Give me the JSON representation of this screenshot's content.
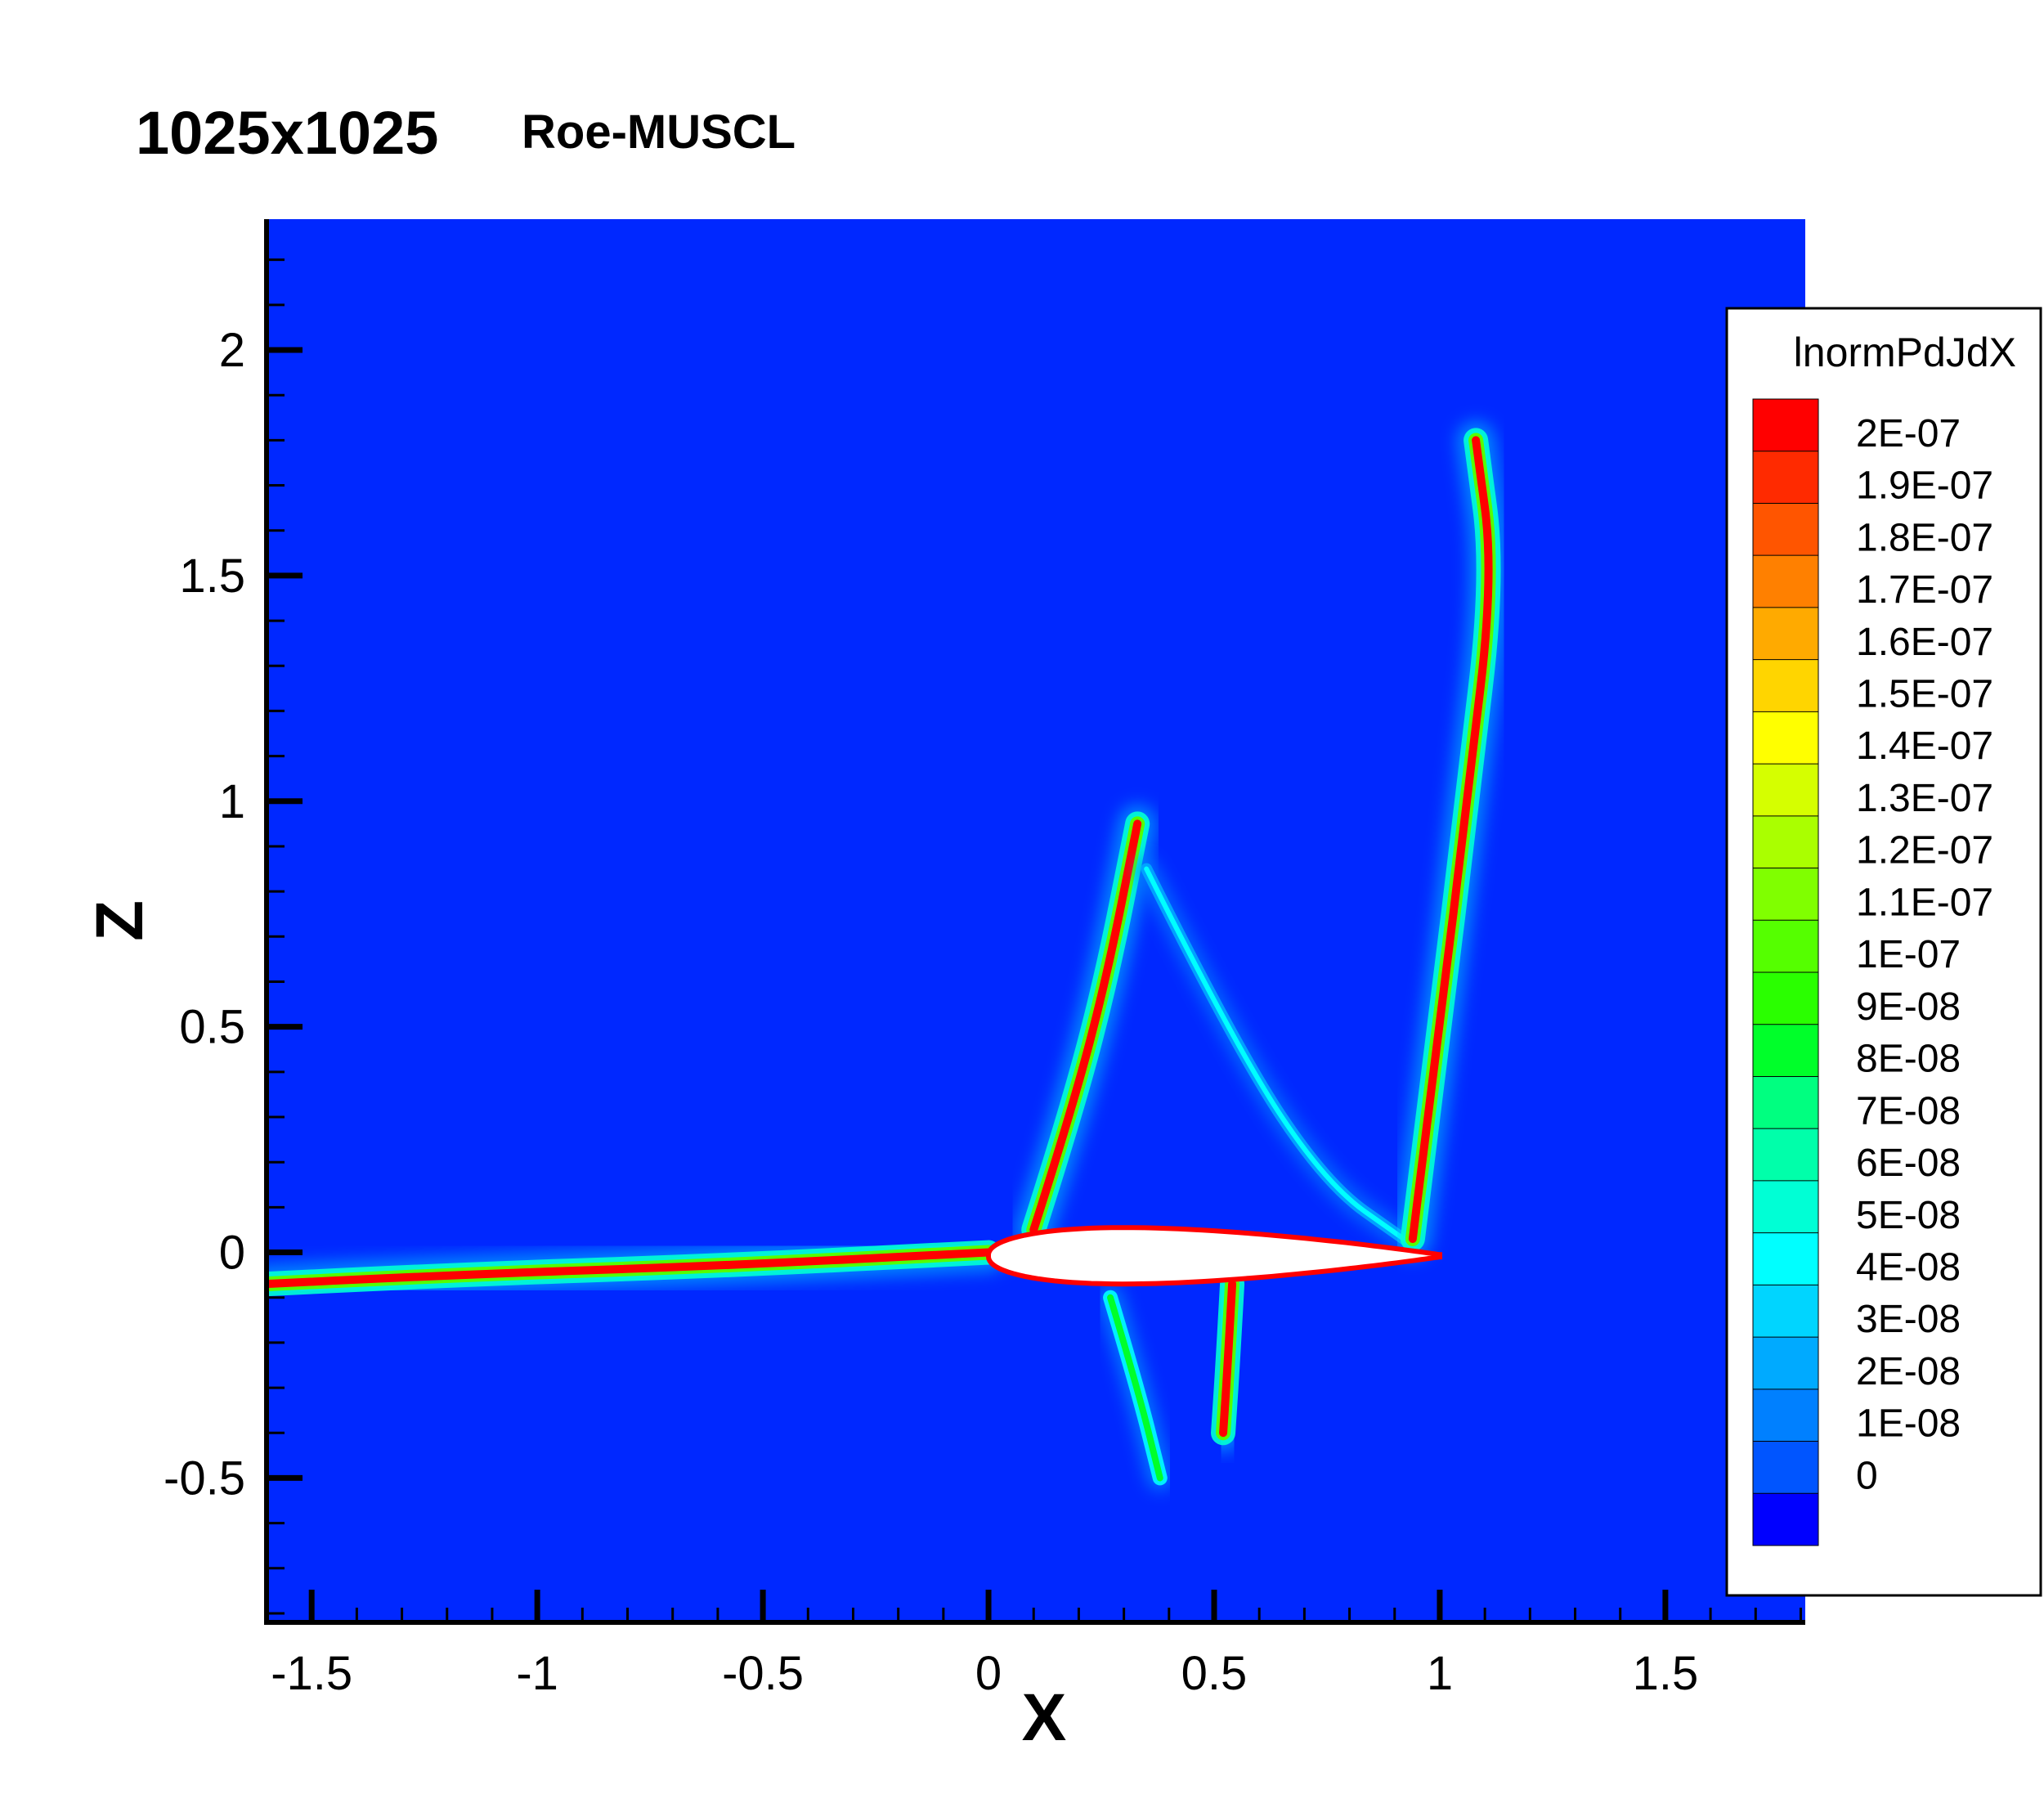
{
  "figure": {
    "title": "1025x1025",
    "subtitle": "Roe-MUSCL"
  },
  "chart_data": {
    "type": "heatmap",
    "title": "1025x1025",
    "subtitle": "Roe-MUSCL",
    "xlabel": "X",
    "ylabel": "Z",
    "xlim": [
      -1.6,
      1.81
    ],
    "ylim": [
      -0.82,
      2.29
    ],
    "x_ticks": [
      {
        "value": -1.5,
        "label": "-1.5"
      },
      {
        "value": -1,
        "label": "-1"
      },
      {
        "value": -0.5,
        "label": "-0.5"
      },
      {
        "value": 0,
        "label": "0"
      },
      {
        "value": 0.5,
        "label": "0.5"
      },
      {
        "value": 1,
        "label": "1"
      },
      {
        "value": 1.5,
        "label": "1.5"
      }
    ],
    "y_ticks": [
      {
        "value": -0.5,
        "label": "-0.5"
      },
      {
        "value": 0,
        "label": "0"
      },
      {
        "value": 0.5,
        "label": "0.5"
      },
      {
        "value": 1,
        "label": "1"
      },
      {
        "value": 1.5,
        "label": "1.5"
      },
      {
        "value": 2,
        "label": "2"
      }
    ],
    "grid": false,
    "legend": {
      "title": "lnormPdJdX",
      "placement": "right",
      "levels": [
        {
          "label": "2E-07",
          "color": "#ff0000"
        },
        {
          "label": "1.9E-07",
          "color": "#ff2a00"
        },
        {
          "label": "1.8E-07",
          "color": "#ff5500"
        },
        {
          "label": "1.7E-07",
          "color": "#ff8000"
        },
        {
          "label": "1.6E-07",
          "color": "#ffaa00"
        },
        {
          "label": "1.5E-07",
          "color": "#ffd500"
        },
        {
          "label": "1.4E-07",
          "color": "#ffff00"
        },
        {
          "label": "1.3E-07",
          "color": "#d5ff00"
        },
        {
          "label": "1.2E-07",
          "color": "#aaff00"
        },
        {
          "label": "1.1E-07",
          "color": "#80ff00"
        },
        {
          "label": "1E-07",
          "color": "#55ff00"
        },
        {
          "label": "9E-08",
          "color": "#2aff00"
        },
        {
          "label": "8E-08",
          "color": "#00ff2a"
        },
        {
          "label": "7E-08",
          "color": "#00ff80"
        },
        {
          "label": "6E-08",
          "color": "#00ffaa"
        },
        {
          "label": "5E-08",
          "color": "#00ffd5"
        },
        {
          "label": "4E-08",
          "color": "#00ffff"
        },
        {
          "label": "3E-08",
          "color": "#00d5ff"
        },
        {
          "label": "2E-08",
          "color": "#00aaff"
        },
        {
          "label": "1E-08",
          "color": "#0080ff"
        },
        {
          "label": "0",
          "color": "#0055ff"
        },
        {
          "label": "",
          "color": "#0000ff"
        }
      ]
    },
    "background_color": "#0028ff",
    "airfoil": {
      "leading_edge": [
        0,
        0
      ],
      "trailing_edge": [
        1,
        0
      ],
      "fill": "#ffffff",
      "outline": "#ff0000"
    },
    "features": [
      {
        "name": "wake-streak",
        "points": [
          [
            -1.6,
            -0.07
          ],
          [
            -1.2,
            -0.05
          ],
          [
            -0.6,
            -0.03
          ],
          [
            0,
            0
          ]
        ],
        "intensity": "high"
      },
      {
        "name": "upper-shock-left",
        "points": [
          [
            0.1,
            0.05
          ],
          [
            0.18,
            0.3
          ],
          [
            0.26,
            0.6
          ],
          [
            0.33,
            0.95
          ]
        ],
        "intensity": "high"
      },
      {
        "name": "upper-shock-right-branch",
        "points": [
          [
            0.35,
            0.85
          ],
          [
            0.55,
            0.45
          ],
          [
            0.75,
            0.15
          ],
          [
            0.92,
            0.03
          ]
        ],
        "intensity": "low"
      },
      {
        "name": "trailing-shock",
        "points": [
          [
            0.94,
            0.03
          ],
          [
            1.0,
            0.5
          ],
          [
            1.06,
            1.0
          ],
          [
            1.12,
            1.5
          ],
          [
            1.08,
            1.8
          ]
        ],
        "intensity": "high"
      },
      {
        "name": "lower-shock",
        "points": [
          [
            0.54,
            -0.07
          ],
          [
            0.53,
            -0.25
          ],
          [
            0.52,
            -0.4
          ]
        ],
        "intensity": "high"
      },
      {
        "name": "lower-wave",
        "points": [
          [
            0.27,
            -0.1
          ],
          [
            0.33,
            -0.3
          ],
          [
            0.38,
            -0.5
          ]
        ],
        "intensity": "medium"
      }
    ]
  }
}
